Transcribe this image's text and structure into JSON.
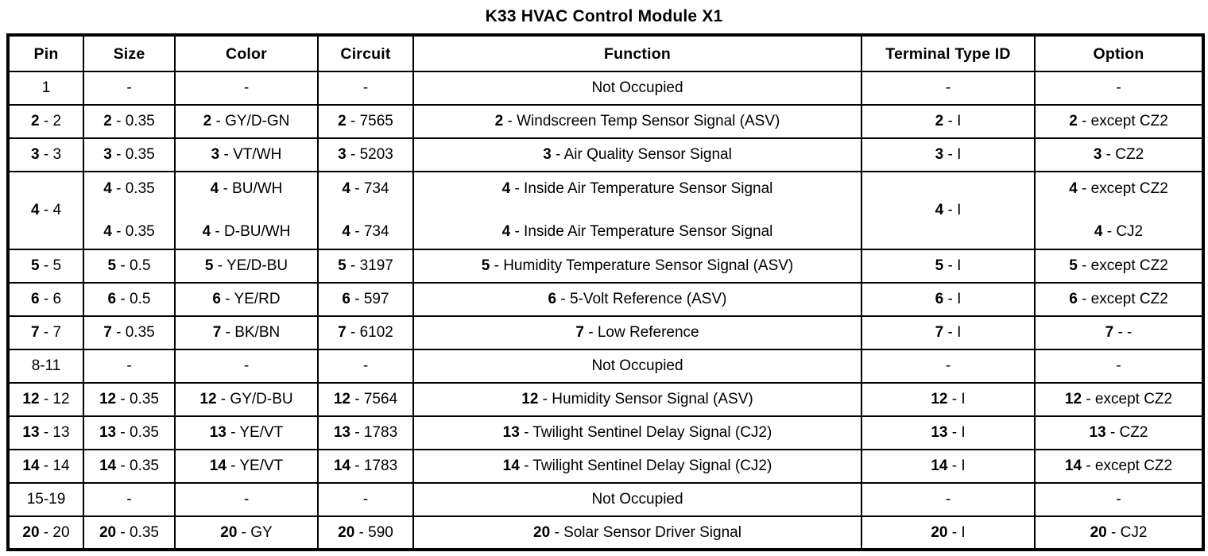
{
  "title": "K33 HVAC Control Module X1",
  "table": {
    "columns": [
      "Pin",
      "Size",
      "Color",
      "Circuit",
      "Function",
      "Terminal Type ID",
      "Option"
    ],
    "rows": [
      {
        "cells": [
          {
            "r": "1"
          },
          {
            "r": "-"
          },
          {
            "r": "-"
          },
          {
            "r": "-"
          },
          {
            "r": "Not Occupied"
          },
          {
            "r": "-"
          },
          {
            "r": "-"
          }
        ]
      },
      {
        "cells": [
          {
            "b": "2",
            "r": " - 2"
          },
          {
            "b": "2",
            "r": " - 0.35"
          },
          {
            "b": "2",
            "r": " - GY/D-GN"
          },
          {
            "b": "2",
            "r": " - 7565"
          },
          {
            "b": "2",
            "r": " - Windscreen Temp Sensor Signal (ASV)"
          },
          {
            "b": "2",
            "r": " - I"
          },
          {
            "b": "2",
            "r": " - except CZ2"
          }
        ]
      },
      {
        "cells": [
          {
            "b": "3",
            "r": " - 3"
          },
          {
            "b": "3",
            "r": " - 0.35"
          },
          {
            "b": "3",
            "r": " - VT/WH"
          },
          {
            "b": "3",
            "r": " - 5203"
          },
          {
            "b": "3",
            "r": " - Air Quality Sensor Signal"
          },
          {
            "b": "3",
            "r": " - I"
          },
          {
            "b": "3",
            "r": " - CZ2"
          }
        ]
      },
      {
        "double": true,
        "cells": [
          {
            "b": "4",
            "r": " - 4"
          },
          {
            "top": {
              "b": "4",
              "r": " - 0.35"
            },
            "bottom": {
              "b": "4",
              "r": " - 0.35"
            }
          },
          {
            "top": {
              "b": "4",
              "r": " - BU/WH"
            },
            "bottom": {
              "b": "4",
              "r": " - D-BU/WH"
            }
          },
          {
            "top": {
              "b": "4",
              "r": " - 734"
            },
            "bottom": {
              "b": "4",
              "r": " - 734"
            }
          },
          {
            "top": {
              "b": "4",
              "r": " - Inside Air Temperature Sensor Signal"
            },
            "bottom": {
              "b": "4",
              "r": " - Inside Air Temperature Sensor Signal"
            }
          },
          {
            "b": "4",
            "r": " - I"
          },
          {
            "top": {
              "b": "4",
              "r": " - except CZ2"
            },
            "bottom": {
              "b": "4",
              "r": " - CJ2"
            }
          }
        ]
      },
      {
        "cells": [
          {
            "b": "5",
            "r": " - 5"
          },
          {
            "b": "5",
            "r": " - 0.5"
          },
          {
            "b": "5",
            "r": " - YE/D-BU"
          },
          {
            "b": "5",
            "r": " - 3197"
          },
          {
            "b": "5",
            "r": " - Humidity Temperature Sensor Signal (ASV)"
          },
          {
            "b": "5",
            "r": " - I"
          },
          {
            "b": "5",
            "r": " - except CZ2"
          }
        ]
      },
      {
        "cells": [
          {
            "b": "6",
            "r": " - 6"
          },
          {
            "b": "6",
            "r": " - 0.5"
          },
          {
            "b": "6",
            "r": " - YE/RD"
          },
          {
            "b": "6",
            "r": " - 597"
          },
          {
            "b": "6",
            "r": " - 5-Volt Reference (ASV)"
          },
          {
            "b": "6",
            "r": " - I"
          },
          {
            "b": "6",
            "r": " - except CZ2"
          }
        ]
      },
      {
        "cells": [
          {
            "b": "7",
            "r": " - 7"
          },
          {
            "b": "7",
            "r": " - 0.35"
          },
          {
            "b": "7",
            "r": " - BK/BN"
          },
          {
            "b": "7",
            "r": " - 6102"
          },
          {
            "b": "7",
            "r": " - Low Reference"
          },
          {
            "b": "7",
            "r": " - I"
          },
          {
            "b": "7",
            "r": " - -"
          }
        ]
      },
      {
        "cells": [
          {
            "r": "8-11"
          },
          {
            "r": "-"
          },
          {
            "r": "-"
          },
          {
            "r": "-"
          },
          {
            "r": "Not Occupied"
          },
          {
            "r": "-"
          },
          {
            "r": "-"
          }
        ]
      },
      {
        "cells": [
          {
            "b": "12",
            "r": " - 12"
          },
          {
            "b": "12",
            "r": " - 0.35"
          },
          {
            "b": "12",
            "r": " - GY/D-BU"
          },
          {
            "b": "12",
            "r": " - 7564"
          },
          {
            "b": "12",
            "r": " - Humidity Sensor Signal (ASV)"
          },
          {
            "b": "12",
            "r": " - I"
          },
          {
            "b": "12",
            "r": " - except CZ2"
          }
        ]
      },
      {
        "cells": [
          {
            "b": "13",
            "r": " - 13"
          },
          {
            "b": "13",
            "r": " - 0.35"
          },
          {
            "b": "13",
            "r": " - YE/VT"
          },
          {
            "b": "13",
            "r": " - 1783"
          },
          {
            "b": "13",
            "r": " - Twilight Sentinel Delay Signal (CJ2)"
          },
          {
            "b": "13",
            "r": " - I"
          },
          {
            "b": "13",
            "r": " - CZ2"
          }
        ]
      },
      {
        "cells": [
          {
            "b": "14",
            "r": " - 14"
          },
          {
            "b": "14",
            "r": " - 0.35"
          },
          {
            "b": "14",
            "r": " - YE/VT"
          },
          {
            "b": "14",
            "r": " - 1783"
          },
          {
            "b": "14",
            "r": " - Twilight Sentinel Delay Signal (CJ2)"
          },
          {
            "b": "14",
            "r": " - I"
          },
          {
            "b": "14",
            "r": " - except CZ2"
          }
        ]
      },
      {
        "cells": [
          {
            "r": "15-19"
          },
          {
            "r": "-"
          },
          {
            "r": "-"
          },
          {
            "r": "-"
          },
          {
            "r": "Not Occupied"
          },
          {
            "r": "-"
          },
          {
            "r": "-"
          }
        ]
      },
      {
        "cells": [
          {
            "b": "20",
            "r": " - 20"
          },
          {
            "b": "20",
            "r": " - 0.35"
          },
          {
            "b": "20",
            "r": " - GY"
          },
          {
            "b": "20",
            "r": " - 590"
          },
          {
            "b": "20",
            "r": " - Solar Sensor Driver Signal"
          },
          {
            "b": "20",
            "r": " - I"
          },
          {
            "b": "20",
            "r": " - CJ2"
          }
        ]
      }
    ]
  },
  "colors": {
    "text": "#000000",
    "background": "#ffffff",
    "border": "#000000"
  }
}
